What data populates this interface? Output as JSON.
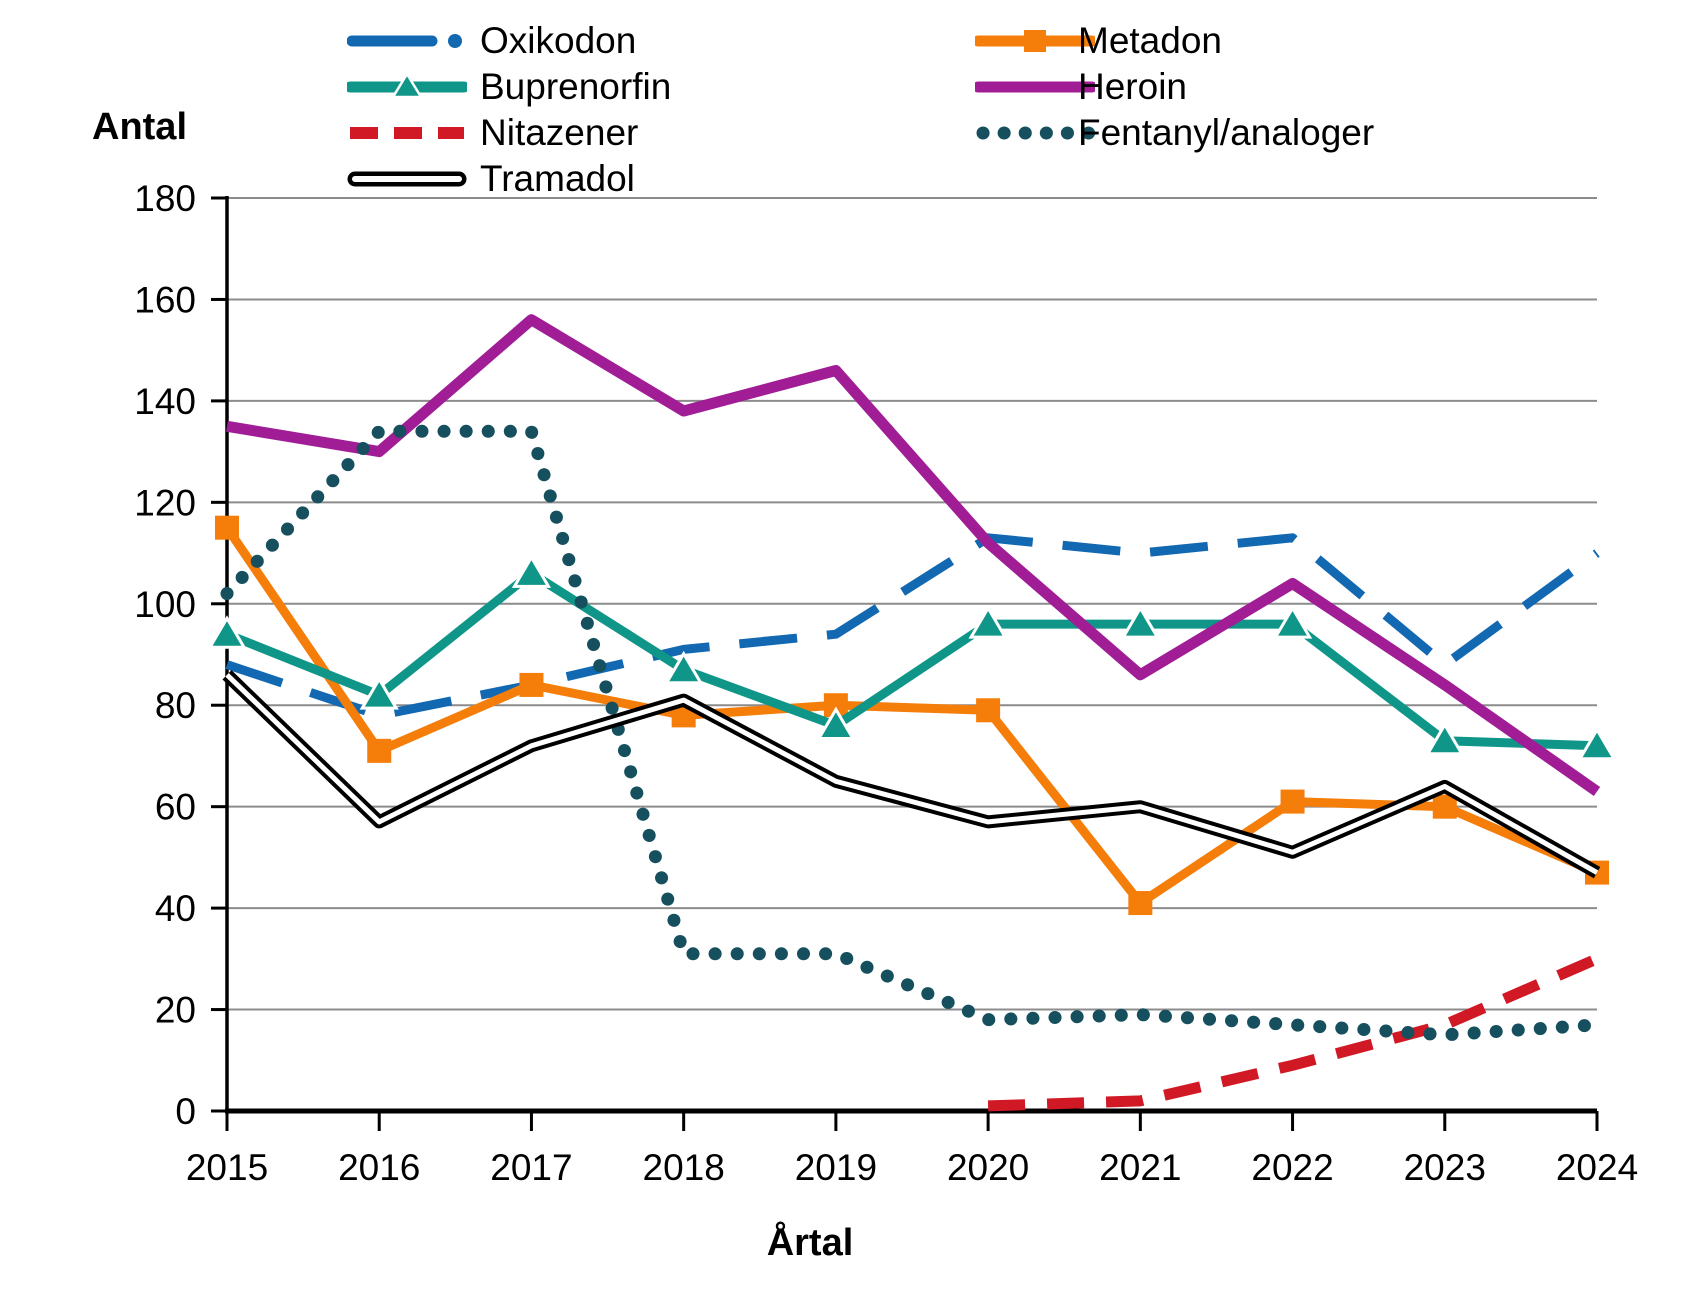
{
  "axes": {
    "y_label": "Antal",
    "x_label": "Årtal",
    "y_ticks": [
      0,
      20,
      40,
      60,
      80,
      100,
      120,
      140,
      160,
      180
    ],
    "x_ticks": [
      "2015",
      "2016",
      "2017",
      "2018",
      "2019",
      "2020",
      "2021",
      "2022",
      "2023",
      "2024"
    ]
  },
  "chart_data": {
    "type": "line",
    "title": "",
    "xlabel": "Årtal",
    "ylabel": "Antal",
    "ylim": [
      0,
      180
    ],
    "grid": true,
    "legend_position": "top",
    "gridline_color": "#8c8c8c",
    "categories": [
      2015,
      2016,
      2017,
      2018,
      2019,
      2020,
      2021,
      2022,
      2023,
      2024
    ],
    "series": [
      {
        "name": "Oxikodon",
        "color": "#1268b1",
        "style": "dashed",
        "marker": "none",
        "values": [
          88,
          78,
          84,
          91,
          94,
          113,
          110,
          113,
          88,
          110
        ]
      },
      {
        "name": "Metadon",
        "color": "#f57d0a",
        "style": "solid",
        "marker": "square",
        "values": [
          115,
          71,
          84,
          78,
          80,
          79,
          41,
          61,
          60,
          47
        ]
      },
      {
        "name": "Buprenorfin",
        "color": "#0f9688",
        "style": "solid",
        "marker": "triangle",
        "values": [
          94,
          82,
          106,
          87,
          76,
          96,
          96,
          96,
          73,
          72
        ]
      },
      {
        "name": "Heroin",
        "color": "#a01d96",
        "style": "solid",
        "marker": "none",
        "values": [
          135,
          130,
          156,
          138,
          146,
          112,
          86,
          104,
          84,
          63
        ]
      },
      {
        "name": "Nitazener",
        "color": "#d11926",
        "style": "dashed-short",
        "marker": "none",
        "values": [
          null,
          null,
          null,
          null,
          null,
          1,
          2,
          9,
          17,
          30
        ]
      },
      {
        "name": "Fentanyl/analoger",
        "color": "#16505e",
        "style": "dotted",
        "marker": "none",
        "values": [
          102,
          134,
          134,
          31,
          31,
          18,
          19,
          17,
          15,
          17
        ]
      },
      {
        "name": "Tramadol",
        "color": "#000000",
        "style": "double",
        "marker": "none",
        "values": [
          86,
          57,
          72,
          81,
          65,
          57,
          60,
          51,
          64,
          47
        ]
      }
    ]
  },
  "legend": {
    "columns": [
      [
        "Oxikodon",
        "Buprenorfin",
        "Nitazener",
        "Tramadol"
      ],
      [
        "Metadon",
        "Heroin",
        "Fentanyl/analoger"
      ]
    ]
  }
}
